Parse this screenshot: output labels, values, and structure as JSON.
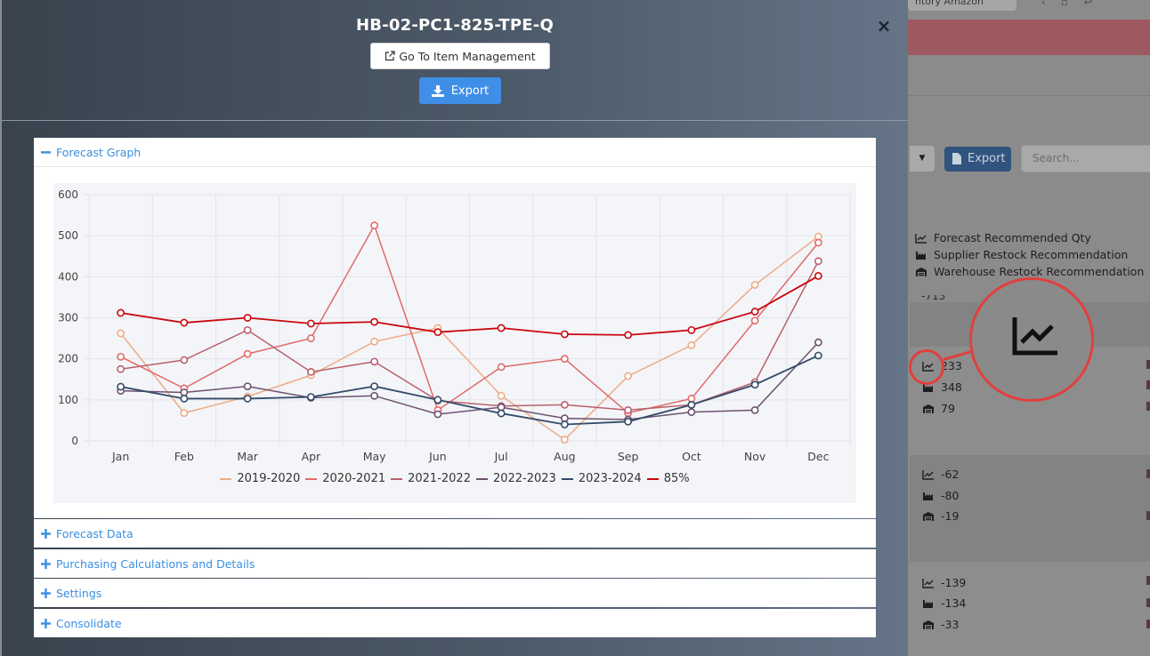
{
  "background": {
    "top_search_text": "ntory Amazon",
    "select_caret": "▼",
    "export_label": "Export",
    "search_placeholder": "Search...",
    "legend": [
      {
        "icon": "line-chart-icon",
        "label": "Forecast Recommended Qty"
      },
      {
        "icon": "factory-icon",
        "label": "Supplier Restock Recommendation"
      },
      {
        "icon": "warehouse-icon",
        "label": "Warehouse Restock Recommendation"
      }
    ],
    "cut_value": "-713",
    "rows": [
      {
        "forecast": "233",
        "supplier": "348",
        "warehouse": "79"
      },
      {
        "forecast": "-62",
        "supplier": "-80",
        "warehouse": "-19"
      },
      {
        "forecast": "-139",
        "supplier": "-134",
        "warehouse": "-33"
      }
    ]
  },
  "modal": {
    "title": "HB-02-PC1-825-TPE-Q",
    "close_symbol": "×",
    "goto_label": "Go To Item Management",
    "export_label": "Export",
    "sections": [
      {
        "label": "Forecast Graph",
        "expanded": true
      },
      {
        "label": "Forecast Data",
        "expanded": false
      },
      {
        "label": "Purchasing Calculations and Details",
        "expanded": false
      },
      {
        "label": "Settings",
        "expanded": false
      },
      {
        "label": "Consolidate",
        "expanded": false
      }
    ]
  },
  "colors": {
    "accent": "#3f8fe8",
    "link": "#3a8fe0",
    "highlight": "#e0403d"
  },
  "chart_data": {
    "type": "line",
    "categories": [
      "Jan",
      "Feb",
      "Mar",
      "Apr",
      "May",
      "Jun",
      "Jul",
      "Aug",
      "Sep",
      "Oct",
      "Nov",
      "Dec"
    ],
    "ylim": [
      0,
      600
    ],
    "yticks": [
      0,
      100,
      200,
      300,
      400,
      500,
      600
    ],
    "grid": true,
    "legend_position": "bottom",
    "series": [
      {
        "name": "2019-2020",
        "color": "#eeab86",
        "width": 1.5,
        "values": [
          262,
          68,
          108,
          160,
          242,
          275,
          110,
          3,
          158,
          233,
          380,
          498
        ]
      },
      {
        "name": "2020-2021",
        "color": "#e06b6b",
        "width": 1.5,
        "values": [
          205,
          128,
          212,
          250,
          525,
          75,
          180,
          200,
          68,
          103,
          293,
          483
        ]
      },
      {
        "name": "2021-2022",
        "color": "#b9606c",
        "width": 1.5,
        "values": [
          175,
          197,
          270,
          168,
          193,
          98,
          85,
          88,
          75,
          88,
          143,
          438
        ]
      },
      {
        "name": "2022-2023",
        "color": "#6c5270",
        "width": 1.5,
        "values": [
          122,
          118,
          133,
          105,
          110,
          65,
          82,
          55,
          52,
          70,
          75,
          240
        ]
      },
      {
        "name": "2023-2024",
        "color": "#334b6a",
        "width": 1.8,
        "values": [
          132,
          103,
          103,
          107,
          133,
          100,
          67,
          40,
          47,
          88,
          137,
          208
        ]
      },
      {
        "name": "85%",
        "color": "#c8080e",
        "width": 1.8,
        "values": [
          312,
          288,
          300,
          286,
          290,
          265,
          275,
          260,
          258,
          270,
          315,
          402
        ]
      }
    ]
  }
}
